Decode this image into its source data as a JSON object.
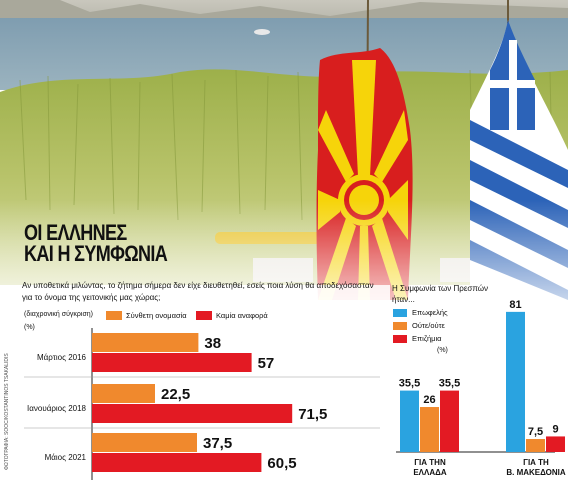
{
  "title_lines": [
    "ΟΙ ΕΛΛΗΝΕΣ",
    "ΚΑΙ Η ΣΥΜΦΩΝΙΑ"
  ],
  "question": "Αν υποθετικά μιλώντας, το ζήτημα σήμερα δεν είχε διευθετηθεί, εσείς ποια λύση θα αποδεχόσασταν για το όνομα της γειτονικής μας χώρας;",
  "subnote": "(διαχρονική σύγκριση)",
  "unit": "(%)",
  "credit": "ΦΩΤΟΓΡΑΦΙΑ: SOOC/KOSTANTINOS TSAKALIDIS",
  "right_title": "Η Συμφωνία των Πρεσπών ήταν...",
  "right_unit": "(%)",
  "colors": {
    "orange": "#f0892d",
    "red": "#e31a23",
    "blue": "#2aa3e0"
  },
  "chart_data": [
    {
      "type": "bar",
      "orientation": "horizontal",
      "categories": [
        "Μάρτιος 2016",
        "Ιανουάριος 2018",
        "Μάιος 2021"
      ],
      "series": [
        {
          "name": "Σύνθετη ονομασία",
          "values": [
            38,
            22.5,
            37.5
          ],
          "color": "#f0892d"
        },
        {
          "name": "Καμία αναφορά",
          "values": [
            57,
            71.5,
            60.5
          ],
          "color": "#e31a23"
        }
      ],
      "value_labels": [
        [
          "38",
          "57"
        ],
        [
          "22,5",
          "71,5"
        ],
        [
          "37,5",
          "60,5"
        ]
      ],
      "legend": "top"
    },
    {
      "type": "bar",
      "orientation": "vertical",
      "categories": [
        "ΓΙΑ ΤΗΝ ΕΛΛΑΔΑ",
        "ΓΙΑ ΤΗ Β. ΜΑΚΕΔΟΝΙΑ"
      ],
      "category_lines": [
        [
          "ΓΙΑ ΤΗΝ",
          "ΕΛΛΑΔΑ"
        ],
        [
          "ΓΙΑ ΤΗ",
          "Β. ΜΑΚΕΔΟΝΙΑ"
        ]
      ],
      "series": [
        {
          "name": "Επωφελής",
          "values": [
            35.5,
            81
          ],
          "color": "#2aa3e0"
        },
        {
          "name": "Ούτε/ούτε",
          "values": [
            26,
            7.5
          ],
          "color": "#f0892d"
        },
        {
          "name": "Επιζήμια",
          "values": [
            35.5,
            9
          ],
          "color": "#e31a23"
        }
      ],
      "value_labels": [
        [
          "35,5",
          "26",
          "35,5"
        ],
        [
          "81",
          "7,5",
          "9"
        ]
      ],
      "legend": "top-left"
    }
  ]
}
